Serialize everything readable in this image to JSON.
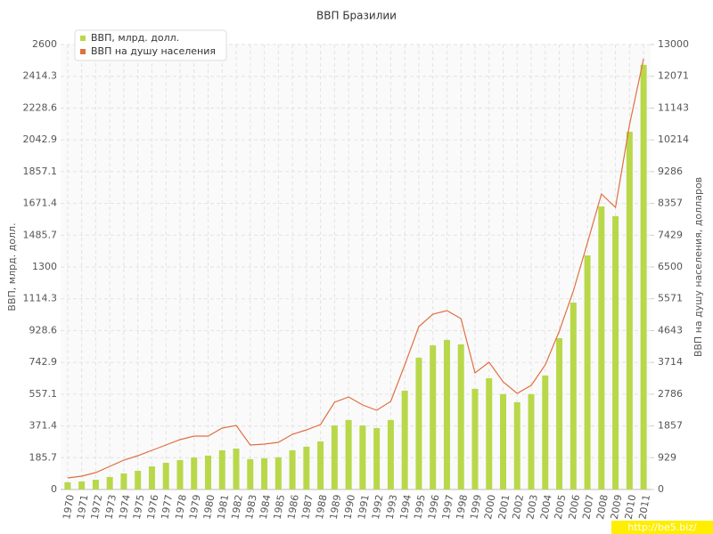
{
  "chart_data": {
    "type": "bar_line",
    "title": "ВВП Бразилии",
    "y_label": "ВВП, млрд. долл.",
    "y2_label": "ВВП на душу населения, долларов",
    "categories": [
      "1970",
      "1971",
      "1972",
      "1973",
      "1974",
      "1975",
      "1976",
      "1977",
      "1978",
      "1979",
      "1980",
      "1981",
      "1982",
      "1983",
      "1984",
      "1985",
      "1986",
      "1987",
      "1988",
      "1989",
      "1990",
      "1991",
      "1992",
      "1993",
      "1994",
      "1995",
      "1996",
      "1997",
      "1998",
      "1999",
      "2000",
      "2001",
      "2002",
      "2003",
      "2004",
      "2005",
      "2006",
      "2007",
      "2008",
      "2009",
      "2010",
      "2011"
    ],
    "series": [
      {
        "name": "ВВП, млрд. долл.",
        "type": "bar",
        "color": "#b8d84a",
        "values": [
          42,
          47,
          57,
          73,
          94,
          109,
          135,
          156,
          172,
          187,
          198,
          229,
          239,
          177,
          182,
          188,
          229,
          250,
          281,
          374,
          406,
          374,
          359,
          406,
          577,
          770,
          842,
          874,
          848,
          588,
          650,
          557,
          510,
          557,
          666,
          884,
          1092,
          1368,
          1654,
          1597,
          2090,
          2481
        ]
      },
      {
        "name": "ВВП на душу населения",
        "type": "line",
        "axis": "y2",
        "color": "#e07040",
        "values": [
          338,
          390,
          494,
          676,
          858,
          988,
          1144,
          1300,
          1456,
          1560,
          1560,
          1794,
          1872,
          1300,
          1326,
          1378,
          1612,
          1742,
          1898,
          2548,
          2704,
          2470,
          2314,
          2574,
          3640,
          4758,
          5122,
          5226,
          4992,
          3406,
          3718,
          3146,
          2808,
          3042,
          3640,
          4628,
          5798,
          7202,
          8632,
          8242,
          10660,
          12584
        ]
      }
    ],
    "ylim": [
      0,
      2600
    ],
    "yticks": [
      0,
      185.7,
      371.4,
      557.1,
      742.9,
      928.6,
      1114.3,
      1300,
      1485.7,
      1671.4,
      1857.1,
      2042.9,
      2228.6,
      2414.3,
      2600
    ],
    "y2lim": [
      0,
      13000
    ],
    "y2ticks": [
      0,
      929,
      1857,
      2786,
      3714,
      4643,
      5571,
      6500,
      7429,
      8357,
      9286,
      10214,
      11143,
      12071,
      13000
    ],
    "grid": true,
    "legend": "top-left",
    "watermark": "http://be5.biz/"
  }
}
